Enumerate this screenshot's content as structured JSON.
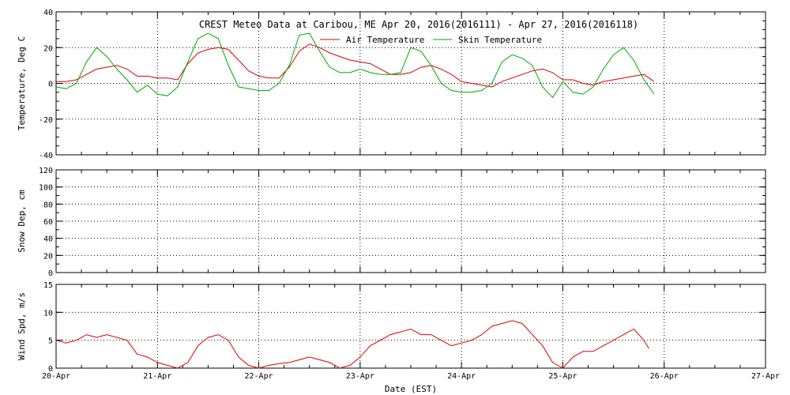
{
  "title": "CREST Meteo Data at Caribou, ME   Apr 20, 2016(2016111) - Apr 27, 2016(2016118)",
  "colors": {
    "air": "#dd0000",
    "skin": "#00aa00",
    "wind": "#dd0000",
    "frame": "#000000",
    "grid": "#000000"
  },
  "chart_data": [
    {
      "type": "line",
      "ylabel": "Temperature, Deg C",
      "ylim": [
        -40,
        40
      ],
      "yticks": [
        "40",
        "20",
        "0",
        "-20",
        "-40"
      ],
      "xlim": [
        0,
        7
      ],
      "x_major": [
        0,
        1,
        2,
        3,
        4,
        5,
        6,
        7
      ],
      "grid": true,
      "legend_placement": "top-center",
      "series": [
        {
          "name": "Air Temperature",
          "color": "#dd0000",
          "x": [
            0,
            0.1,
            0.2,
            0.3,
            0.4,
            0.5,
            0.6,
            0.7,
            0.8,
            0.9,
            1.0,
            1.1,
            1.2,
            1.3,
            1.4,
            1.5,
            1.6,
            1.7,
            1.8,
            1.9,
            2.0,
            2.1,
            2.2,
            2.3,
            2.4,
            2.5,
            2.6,
            2.7,
            2.8,
            2.9,
            3.0,
            3.1,
            3.2,
            3.3,
            3.4,
            3.5,
            3.6,
            3.7,
            3.8,
            3.9,
            4.0,
            4.1,
            4.2,
            4.3,
            4.4,
            4.5,
            4.6,
            4.7,
            4.8,
            4.9,
            5.0,
            5.1,
            5.2,
            5.3,
            5.4,
            5.5,
            5.6,
            5.7,
            5.8,
            5.9
          ],
          "y": [
            1,
            1,
            2,
            5,
            8,
            9,
            10,
            8,
            4,
            4,
            3,
            3,
            2,
            11,
            17,
            19,
            20,
            19,
            13,
            7,
            4,
            3,
            3,
            9,
            18,
            22,
            20,
            17,
            15,
            13,
            12,
            11,
            8,
            5,
            5,
            6,
            9,
            10,
            8,
            5,
            1,
            0,
            -1,
            -2,
            1,
            3,
            5,
            7,
            8,
            6,
            2,
            2,
            0,
            -1,
            1,
            2,
            3,
            4,
            5,
            1
          ]
        },
        {
          "name": "Skin Temperature",
          "color": "#00aa00",
          "x": [
            0,
            0.1,
            0.2,
            0.3,
            0.4,
            0.5,
            0.6,
            0.7,
            0.8,
            0.9,
            1.0,
            1.1,
            1.2,
            1.3,
            1.4,
            1.5,
            1.6,
            1.7,
            1.8,
            1.9,
            2.0,
            2.1,
            2.2,
            2.3,
            2.4,
            2.5,
            2.6,
            2.7,
            2.8,
            2.9,
            3.0,
            3.1,
            3.2,
            3.3,
            3.4,
            3.5,
            3.6,
            3.7,
            3.8,
            3.9,
            4.0,
            4.1,
            4.2,
            4.3,
            4.4,
            4.5,
            4.6,
            4.7,
            4.8,
            4.9,
            5.0,
            5.1,
            5.2,
            5.3,
            5.4,
            5.5,
            5.6,
            5.7,
            5.8,
            5.9
          ],
          "y": [
            -2,
            -3,
            0,
            12,
            20,
            15,
            8,
            2,
            -5,
            -1,
            -6,
            -7,
            -2,
            12,
            25,
            28,
            25,
            10,
            -2,
            -3,
            -4,
            -4,
            0,
            10,
            27,
            28,
            18,
            9,
            6,
            6,
            8,
            6,
            5,
            5,
            6,
            20,
            18,
            10,
            0,
            -4,
            -5,
            -5,
            -4,
            0,
            12,
            16,
            14,
            10,
            -2,
            -8,
            1,
            -5,
            -6,
            -2,
            8,
            16,
            20,
            13,
            2,
            -6
          ]
        }
      ]
    },
    {
      "type": "line",
      "ylabel": "Snow Dep, cm",
      "ylim": [
        0,
        120
      ],
      "yticks": [
        "120",
        "100",
        "80",
        "60",
        "40",
        "20",
        "0"
      ],
      "xlim": [
        0,
        7
      ],
      "x_major": [
        0,
        1,
        2,
        3,
        4,
        5,
        6,
        7
      ],
      "grid": true,
      "series": []
    },
    {
      "type": "line",
      "ylabel": "Wind Spd, m/s",
      "xlabel": "Date (EST)",
      "ylim": [
        0,
        15
      ],
      "yticks": [
        "15",
        "10",
        "5",
        "0"
      ],
      "xlim": [
        0,
        7
      ],
      "x_major": [
        0,
        1,
        2,
        3,
        4,
        5,
        6,
        7
      ],
      "xtick_labels": [
        "20-Apr",
        "21-Apr",
        "22-Apr",
        "23-Apr",
        "24-Apr",
        "25-Apr",
        "26-Apr",
        "27-Apr"
      ],
      "grid": true,
      "series": [
        {
          "color": "#dd0000",
          "x": [
            0,
            0.1,
            0.2,
            0.3,
            0.4,
            0.5,
            0.6,
            0.7,
            0.8,
            0.9,
            1.0,
            1.1,
            1.2,
            1.3,
            1.4,
            1.5,
            1.6,
            1.7,
            1.8,
            1.9,
            2.0,
            2.1,
            2.2,
            2.3,
            2.4,
            2.5,
            2.6,
            2.7,
            2.8,
            2.9,
            3.0,
            3.1,
            3.2,
            3.3,
            3.4,
            3.5,
            3.6,
            3.7,
            3.8,
            3.9,
            4.0,
            4.1,
            4.2,
            4.3,
            4.4,
            4.5,
            4.6,
            4.7,
            4.8,
            4.9,
            5.0,
            5.1,
            5.2,
            5.3,
            5.4,
            5.5,
            5.6,
            5.7,
            5.8,
            5.85
          ],
          "y": [
            5,
            4.5,
            5,
            6,
            5.5,
            6,
            5.5,
            5,
            2.5,
            2,
            1,
            0.5,
            0,
            1,
            4,
            5.5,
            6,
            5,
            2,
            0.5,
            0,
            0.5,
            0.8,
            1,
            1.5,
            2,
            1.5,
            1,
            0,
            0.5,
            2,
            4,
            5,
            6,
            6.5,
            7,
            6,
            6,
            5,
            4,
            4.5,
            5,
            6,
            7.5,
            8,
            8.5,
            8,
            6,
            4,
            1,
            0,
            2,
            3,
            3,
            4,
            5,
            6,
            7,
            5,
            3.5
          ]
        }
      ]
    }
  ]
}
